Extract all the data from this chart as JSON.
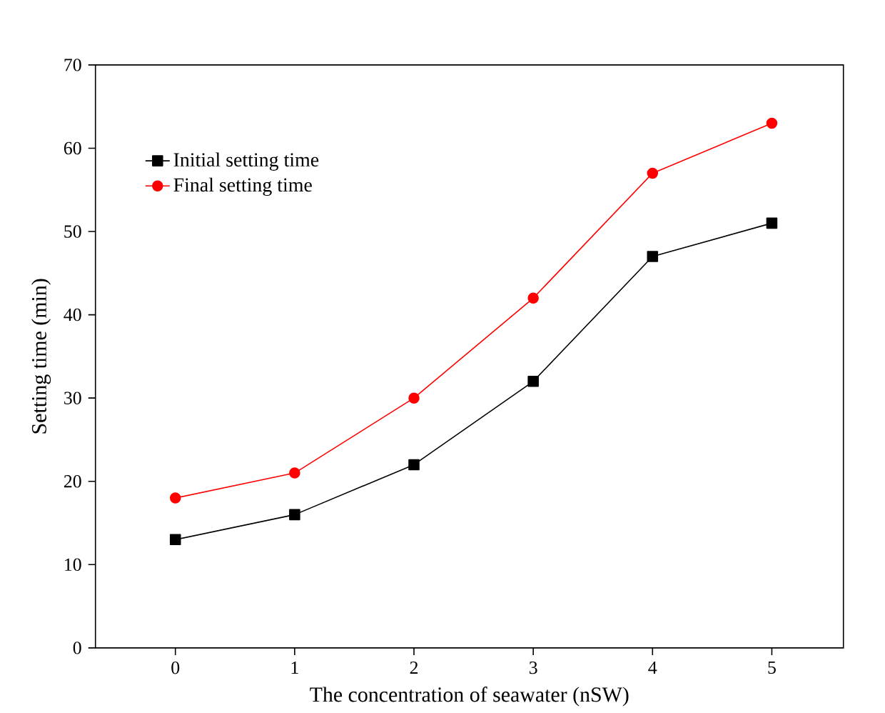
{
  "chart_data": {
    "type": "line",
    "xlabel": "The concentration of seawater (nSW)",
    "ylabel": "Setting time (min)",
    "x": [
      0,
      1,
      2,
      3,
      4,
      5
    ],
    "series": [
      {
        "name": "Initial setting time",
        "color": "#000000",
        "marker": "square",
        "values": [
          13,
          16,
          22,
          32,
          47,
          51
        ]
      },
      {
        "name": "Final setting time",
        "color": "#ff0000",
        "marker": "circle",
        "values": [
          18,
          21,
          30,
          42,
          57,
          63
        ]
      }
    ],
    "xlim": [
      -0.67,
      5.6
    ],
    "xticks": [
      0,
      1,
      2,
      3,
      4,
      5
    ],
    "ylim": [
      0,
      70
    ],
    "yticks": [
      0,
      10,
      20,
      30,
      40,
      50,
      60,
      70
    ],
    "legend": "top left",
    "grid": false,
    "line_style": "solid"
  }
}
